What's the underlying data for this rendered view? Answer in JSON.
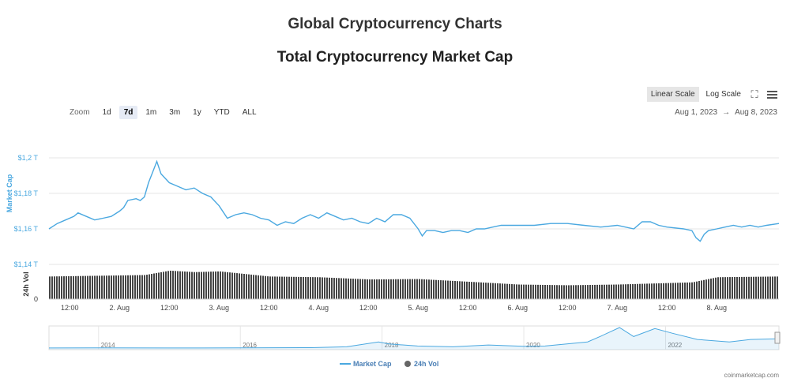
{
  "page": {
    "title": "Global Cryptocurrency Charts",
    "subtitle": "Total Cryptocurrency Market Cap"
  },
  "toolbar": {
    "zoom_label": "Zoom",
    "zoom_buttons": [
      "1d",
      "7d",
      "1m",
      "3m",
      "1y",
      "YTD",
      "ALL"
    ],
    "active_zoom": "7d",
    "scale_buttons": [
      "Linear Scale",
      "Log Scale"
    ],
    "active_scale": "Linear Scale",
    "range_from": "Aug 1, 2023",
    "range_sep": "→",
    "range_to": "Aug 8, 2023"
  },
  "credit": "coinmarketcap.com",
  "colors": {
    "market_cap": "#4aa8e0",
    "volume": "#444444",
    "grid": "#e6e6e6"
  },
  "chart_data": {
    "type": "line",
    "y_axis": {
      "label": "Market Cap",
      "ticks": [
        "$1,14 T",
        "$1,16 T",
        "$1,18 T",
        "$1,2 T"
      ],
      "tick_values": [
        1.14,
        1.16,
        1.18,
        1.2
      ],
      "range": [
        1.14,
        1.2
      ]
    },
    "volume_axis": {
      "label": "24h Vol",
      "ticks": [
        "0"
      ]
    },
    "x_axis": {
      "ticks": [
        "12:00",
        "2. Aug",
        "12:00",
        "3. Aug",
        "12:00",
        "4. Aug",
        "12:00",
        "5. Aug",
        "12:00",
        "6. Aug",
        "12:00",
        "7. Aug",
        "12:00",
        "8. Aug"
      ],
      "range": [
        "2023-08-01T07:00",
        "2023-08-08T15:00"
      ]
    },
    "series": [
      {
        "name": "Market Cap",
        "points": [
          [
            "2023-08-01T07:00",
            1.16
          ],
          [
            "2023-08-01T09:00",
            1.163
          ],
          [
            "2023-08-01T11:00",
            1.165
          ],
          [
            "2023-08-01T13:00",
            1.167
          ],
          [
            "2023-08-01T14:00",
            1.169
          ],
          [
            "2023-08-01T16:00",
            1.167
          ],
          [
            "2023-08-01T18:00",
            1.165
          ],
          [
            "2023-08-01T20:00",
            1.166
          ],
          [
            "2023-08-01T22:00",
            1.167
          ],
          [
            "2023-08-02T00:00",
            1.17
          ],
          [
            "2023-08-02T01:00",
            1.172
          ],
          [
            "2023-08-02T02:00",
            1.176
          ],
          [
            "2023-08-02T04:00",
            1.177
          ],
          [
            "2023-08-02T05:00",
            1.176
          ],
          [
            "2023-08-02T06:00",
            1.178
          ],
          [
            "2023-08-02T07:00",
            1.186
          ],
          [
            "2023-08-02T08:00",
            1.192
          ],
          [
            "2023-08-02T09:00",
            1.198
          ],
          [
            "2023-08-02T10:00",
            1.191
          ],
          [
            "2023-08-02T12:00",
            1.186
          ],
          [
            "2023-08-02T14:00",
            1.184
          ],
          [
            "2023-08-02T16:00",
            1.182
          ],
          [
            "2023-08-02T18:00",
            1.183
          ],
          [
            "2023-08-02T20:00",
            1.18
          ],
          [
            "2023-08-02T22:00",
            1.178
          ],
          [
            "2023-08-03T00:00",
            1.173
          ],
          [
            "2023-08-03T02:00",
            1.166
          ],
          [
            "2023-08-03T04:00",
            1.168
          ],
          [
            "2023-08-03T06:00",
            1.169
          ],
          [
            "2023-08-03T08:00",
            1.168
          ],
          [
            "2023-08-03T10:00",
            1.166
          ],
          [
            "2023-08-03T12:00",
            1.165
          ],
          [
            "2023-08-03T14:00",
            1.162
          ],
          [
            "2023-08-03T16:00",
            1.164
          ],
          [
            "2023-08-03T18:00",
            1.163
          ],
          [
            "2023-08-03T20:00",
            1.166
          ],
          [
            "2023-08-03T22:00",
            1.168
          ],
          [
            "2023-08-04T00:00",
            1.166
          ],
          [
            "2023-08-04T02:00",
            1.169
          ],
          [
            "2023-08-04T04:00",
            1.167
          ],
          [
            "2023-08-04T06:00",
            1.165
          ],
          [
            "2023-08-04T08:00",
            1.166
          ],
          [
            "2023-08-04T10:00",
            1.164
          ],
          [
            "2023-08-04T12:00",
            1.163
          ],
          [
            "2023-08-04T14:00",
            1.166
          ],
          [
            "2023-08-04T16:00",
            1.164
          ],
          [
            "2023-08-04T18:00",
            1.168
          ],
          [
            "2023-08-04T20:00",
            1.168
          ],
          [
            "2023-08-04T22:00",
            1.166
          ],
          [
            "2023-08-05T00:00",
            1.16
          ],
          [
            "2023-08-05T01:00",
            1.156
          ],
          [
            "2023-08-05T02:00",
            1.159
          ],
          [
            "2023-08-05T04:00",
            1.159
          ],
          [
            "2023-08-05T06:00",
            1.158
          ],
          [
            "2023-08-05T08:00",
            1.159
          ],
          [
            "2023-08-05T10:00",
            1.159
          ],
          [
            "2023-08-05T12:00",
            1.158
          ],
          [
            "2023-08-05T14:00",
            1.16
          ],
          [
            "2023-08-05T16:00",
            1.16
          ],
          [
            "2023-08-05T18:00",
            1.161
          ],
          [
            "2023-08-05T20:00",
            1.162
          ],
          [
            "2023-08-06T00:00",
            1.162
          ],
          [
            "2023-08-06T04:00",
            1.162
          ],
          [
            "2023-08-06T08:00",
            1.163
          ],
          [
            "2023-08-06T12:00",
            1.163
          ],
          [
            "2023-08-06T16:00",
            1.162
          ],
          [
            "2023-08-06T20:00",
            1.161
          ],
          [
            "2023-08-07T00:00",
            1.162
          ],
          [
            "2023-08-07T04:00",
            1.16
          ],
          [
            "2023-08-07T06:00",
            1.164
          ],
          [
            "2023-08-07T08:00",
            1.164
          ],
          [
            "2023-08-07T10:00",
            1.162
          ],
          [
            "2023-08-07T12:00",
            1.161
          ],
          [
            "2023-08-07T16:00",
            1.16
          ],
          [
            "2023-08-07T18:00",
            1.159
          ],
          [
            "2023-08-07T19:00",
            1.155
          ],
          [
            "2023-08-07T20:00",
            1.153
          ],
          [
            "2023-08-07T21:00",
            1.157
          ],
          [
            "2023-08-07T22:00",
            1.159
          ],
          [
            "2023-08-08T00:00",
            1.16
          ],
          [
            "2023-08-08T02:00",
            1.161
          ],
          [
            "2023-08-08T04:00",
            1.162
          ],
          [
            "2023-08-08T06:00",
            1.161
          ],
          [
            "2023-08-08T08:00",
            1.162
          ],
          [
            "2023-08-08T10:00",
            1.161
          ],
          [
            "2023-08-08T12:00",
            1.162
          ],
          [
            "2023-08-08T15:00",
            1.163
          ]
        ]
      },
      {
        "name": "24h Vol",
        "relative_levels": [
          [
            "2023-08-01T07:00",
            0.62
          ],
          [
            "2023-08-02T06:00",
            0.66
          ],
          [
            "2023-08-02T12:00",
            0.78
          ],
          [
            "2023-08-02T18:00",
            0.74
          ],
          [
            "2023-08-03T00:00",
            0.76
          ],
          [
            "2023-08-03T12:00",
            0.62
          ],
          [
            "2023-08-04T00:00",
            0.6
          ],
          [
            "2023-08-04T12:00",
            0.54
          ],
          [
            "2023-08-05T00:00",
            0.55
          ],
          [
            "2023-08-05T18:00",
            0.44
          ],
          [
            "2023-08-06T00:00",
            0.4
          ],
          [
            "2023-08-06T12:00",
            0.38
          ],
          [
            "2023-08-07T00:00",
            0.4
          ],
          [
            "2023-08-07T18:00",
            0.46
          ],
          [
            "2023-08-08T00:00",
            0.6
          ],
          [
            "2023-08-08T15:00",
            0.62
          ]
        ]
      }
    ],
    "navigator": {
      "ticks": [
        "2014",
        "2016",
        "2018",
        "2020",
        "2022"
      ],
      "history": [
        [
          2013.3,
          0.002
        ],
        [
          2014.0,
          0.006
        ],
        [
          2015.0,
          0.003
        ],
        [
          2016.0,
          0.006
        ],
        [
          2017.0,
          0.02
        ],
        [
          2017.5,
          0.06
        ],
        [
          2017.95,
          0.3
        ],
        [
          2018.1,
          0.2
        ],
        [
          2018.5,
          0.1
        ],
        [
          2019.0,
          0.06
        ],
        [
          2019.5,
          0.15
        ],
        [
          2020.0,
          0.09
        ],
        [
          2020.3,
          0.1
        ],
        [
          2020.9,
          0.3
        ],
        [
          2021.1,
          0.6
        ],
        [
          2021.35,
          1.0
        ],
        [
          2021.55,
          0.56
        ],
        [
          2021.85,
          0.95
        ],
        [
          2022.1,
          0.72
        ],
        [
          2022.45,
          0.42
        ],
        [
          2022.9,
          0.3
        ],
        [
          2023.2,
          0.42
        ],
        [
          2023.6,
          0.45
        ]
      ]
    },
    "legend": [
      "Market Cap",
      "24h Vol"
    ],
    "legend_position": "bottom-center",
    "grid": true
  }
}
